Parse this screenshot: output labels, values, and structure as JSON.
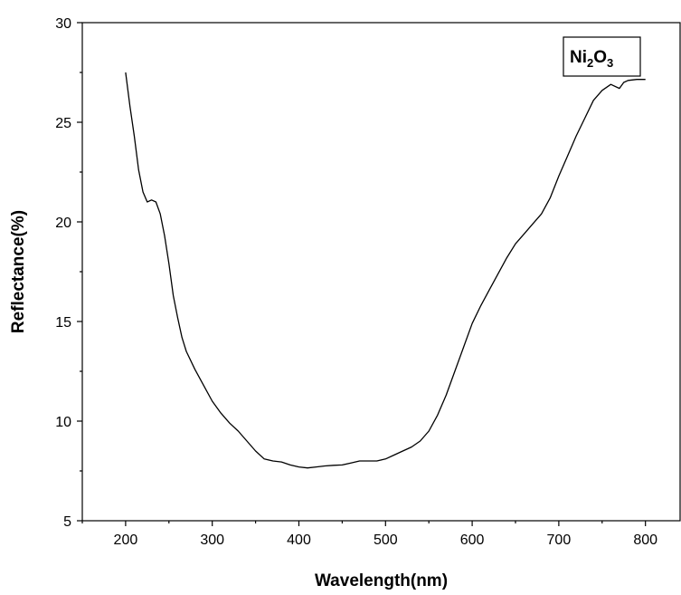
{
  "chart_data": {
    "type": "line",
    "xlabel": "Wavelength(nm)",
    "ylabel": "Reflectance(%)",
    "xlim": [
      150,
      840
    ],
    "ylim": [
      5,
      30
    ],
    "x_ticks": [
      200,
      300,
      400,
      500,
      600,
      700,
      800
    ],
    "y_ticks": [
      5,
      10,
      15,
      20,
      25,
      30
    ],
    "grid": false,
    "legend_placement": "top-right",
    "line_color": "#000000",
    "series": [
      {
        "name": "Ni2O3",
        "name_parts": {
          "base1": "Ni",
          "sub1": "2",
          "base2": "O",
          "sub2": "3"
        },
        "x": [
          200,
          205,
          210,
          215,
          220,
          225,
          230,
          235,
          240,
          245,
          250,
          255,
          260,
          265,
          270,
          280,
          290,
          300,
          310,
          320,
          330,
          340,
          350,
          360,
          370,
          380,
          390,
          400,
          410,
          420,
          430,
          440,
          450,
          460,
          470,
          480,
          490,
          500,
          510,
          520,
          530,
          540,
          550,
          560,
          570,
          580,
          590,
          600,
          610,
          620,
          630,
          640,
          650,
          660,
          670,
          680,
          690,
          700,
          710,
          720,
          730,
          740,
          750,
          760,
          770,
          775,
          780,
          790,
          800
        ],
        "y": [
          27.5,
          25.8,
          24.3,
          22.6,
          21.5,
          21.0,
          21.1,
          21.0,
          20.4,
          19.3,
          17.9,
          16.3,
          15.2,
          14.2,
          13.5,
          12.6,
          11.8,
          11.0,
          10.4,
          9.9,
          9.5,
          9.0,
          8.5,
          8.1,
          8.0,
          7.95,
          7.8,
          7.7,
          7.65,
          7.7,
          7.75,
          7.78,
          7.8,
          7.9,
          8.0,
          8.0,
          8.0,
          8.1,
          8.3,
          8.5,
          8.7,
          9.0,
          9.5,
          10.3,
          11.3,
          12.5,
          13.7,
          14.9,
          15.8,
          16.6,
          17.4,
          18.2,
          18.9,
          19.4,
          19.9,
          20.4,
          21.2,
          22.3,
          23.3,
          24.3,
          25.2,
          26.1,
          26.6,
          26.9,
          26.7,
          27.0,
          27.1,
          27.15,
          27.15
        ]
      }
    ]
  }
}
